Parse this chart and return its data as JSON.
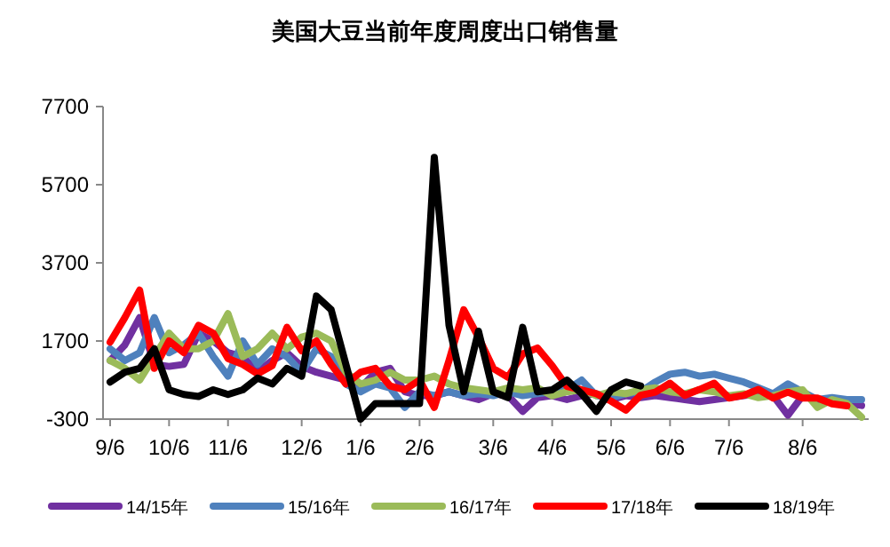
{
  "chart_data": {
    "type": "line",
    "title": "美国大豆当前年度周度出口销售量",
    "categories": [
      "9/6",
      null,
      null,
      null,
      "10/6",
      null,
      null,
      null,
      "11/6",
      null,
      null,
      null,
      null,
      "12/6",
      null,
      null,
      null,
      "1/6",
      null,
      null,
      null,
      "2/6",
      null,
      null,
      null,
      null,
      "3/6",
      null,
      null,
      null,
      "4/6",
      null,
      null,
      null,
      "5/6",
      null,
      null,
      null,
      "6/6",
      null,
      null,
      null,
      "7/6",
      null,
      null,
      null,
      null,
      "8/6",
      null,
      null,
      null,
      null
    ],
    "ylim": [
      -300,
      7700
    ],
    "yticks": [
      -300,
      1700,
      3700,
      5700,
      7700
    ],
    "grid": false,
    "legend": "bottom",
    "line_style": "solid",
    "marker": "none",
    "series": [
      {
        "name": "14/15年",
        "color": "#7030a0",
        "values": [
          1200,
          1600,
          2300,
          1100,
          1050,
          1100,
          1900,
          1700,
          1400,
          1300,
          900,
          1200,
          1400,
          1050,
          900,
          800,
          700,
          500,
          900,
          1000,
          400,
          300,
          300,
          400,
          300,
          200,
          350,
          300,
          -100,
          250,
          300,
          200,
          300,
          350,
          200,
          300,
          250,
          300,
          250,
          200,
          150,
          200,
          250,
          300,
          350,
          300,
          -200,
          300,
          200,
          150,
          100,
          50
        ]
      },
      {
        "name": "15/16年",
        "color": "#4f81bd",
        "values": [
          1500,
          1200,
          1400,
          2300,
          1400,
          1600,
          1900,
          1300,
          800,
          1700,
          1100,
          1500,
          1300,
          900,
          1500,
          1300,
          600,
          400,
          600,
          500,
          0,
          400,
          300,
          400,
          300,
          350,
          300,
          400,
          300,
          350,
          400,
          450,
          700,
          300,
          250,
          350,
          400,
          650,
          850,
          900,
          800,
          850,
          750,
          650,
          500,
          350,
          600,
          400,
          200,
          250,
          200,
          200
        ]
      },
      {
        "name": "16/17年",
        "color": "#9bbb59",
        "values": [
          1200,
          1000,
          700,
          1300,
          1900,
          1500,
          1500,
          1700,
          2400,
          1300,
          1500,
          1900,
          1500,
          1800,
          1900,
          1700,
          900,
          600,
          700,
          900,
          700,
          700,
          800,
          600,
          500,
          450,
          400,
          500,
          450,
          500,
          300,
          400,
          450,
          300,
          400,
          350,
          450,
          500,
          400,
          350,
          450,
          400,
          300,
          350,
          250,
          300,
          400,
          450,
          0,
          200,
          100,
          -250
        ]
      },
      {
        "name": "17/18年",
        "color": "#ff0000",
        "values": [
          1670,
          2300,
          3000,
          1000,
          1700,
          1400,
          2100,
          1900,
          1250,
          1100,
          860,
          1070,
          2050,
          1450,
          1700,
          1100,
          600,
          900,
          1000,
          550,
          450,
          700,
          0,
          1200,
          2500,
          1800,
          1000,
          770,
          1370,
          1520,
          1070,
          540,
          450,
          350,
          160,
          -70,
          310,
          390,
          620,
          310,
          460,
          620,
          240,
          310,
          460,
          240,
          390,
          240,
          240,
          90,
          40,
          null
        ]
      },
      {
        "name": "18/19年",
        "color": "#000000",
        "values": [
          650,
          900,
          1000,
          1500,
          450,
          330,
          280,
          450,
          330,
          450,
          750,
          600,
          1000,
          800,
          2850,
          2500,
          1100,
          -300,
          100,
          100,
          100,
          100,
          6400,
          2100,
          400,
          1950,
          400,
          250,
          2050,
          400,
          450,
          700,
          350,
          -100,
          450,
          650,
          550,
          null,
          null,
          null,
          null,
          null,
          null,
          null,
          null,
          null,
          null,
          null,
          null,
          null,
          null,
          null
        ]
      }
    ]
  }
}
